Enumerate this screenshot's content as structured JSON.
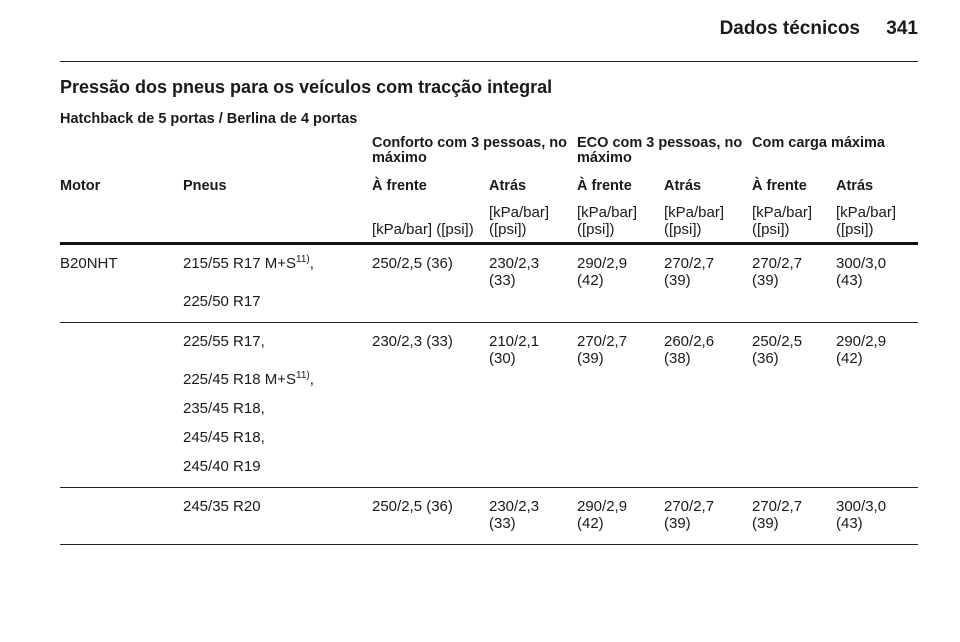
{
  "header": {
    "title": "Dados técnicos",
    "page": "341"
  },
  "section": {
    "title": "Pressão dos pneus para os veículos com tracção integral",
    "subtitle": "Hatchback de 5 portas / Berlina de 4 portas"
  },
  "table": {
    "groups": [
      "Conforto com 3 pessoas, no máximo",
      "ECO com 3 pessoas, no máximo",
      "Com carga máxima"
    ],
    "columns": [
      "Motor",
      "Pneus",
      "À frente",
      "Atrás",
      "À frente",
      "Atrás",
      "À frente",
      "Atrás"
    ],
    "units": [
      "[kPa/bar] ([psi])",
      "[kPa/bar] ([psi])",
      "[kPa/bar] ([psi])",
      "[kPa/bar] ([psi])",
      "[kPa/bar] ([psi])",
      "[kPa/bar] ([psi])"
    ],
    "rows": [
      {
        "motor": "B20NHT",
        "tyres": [
          {
            "text": "215/55 R17 M+S",
            "sup": "11)",
            "after": ","
          },
          {
            "text": "225/50 R17"
          }
        ],
        "values": [
          "250/2,5 (36)",
          "230/2,3 (33)",
          "290/2,9 (42)",
          "270/2,7 (39)",
          "270/2,7 (39)",
          "300/3,0 (43)"
        ]
      },
      {
        "tyres": [
          {
            "text": "225/55 R17,"
          },
          {
            "text": "225/45 R18 M+S",
            "sup": "11)",
            "after": ","
          },
          {
            "text": "235/45 R18,"
          },
          {
            "text": "245/45 R18,"
          },
          {
            "text": "245/40 R19"
          }
        ],
        "values": [
          "230/2,3 (33)",
          "210/2,1 (30)",
          "270/2,7 (39)",
          "260/2,6 (38)",
          "250/2,5 (36)",
          "290/2,9 (42)"
        ]
      },
      {
        "tyres": [
          {
            "text": "245/35 R20"
          }
        ],
        "values": [
          "250/2,5 (36)",
          "230/2,3 (33)",
          "290/2,9 (42)",
          "270/2,7 (39)",
          "270/2,7 (39)",
          "300/3,0 (43)"
        ]
      }
    ]
  }
}
